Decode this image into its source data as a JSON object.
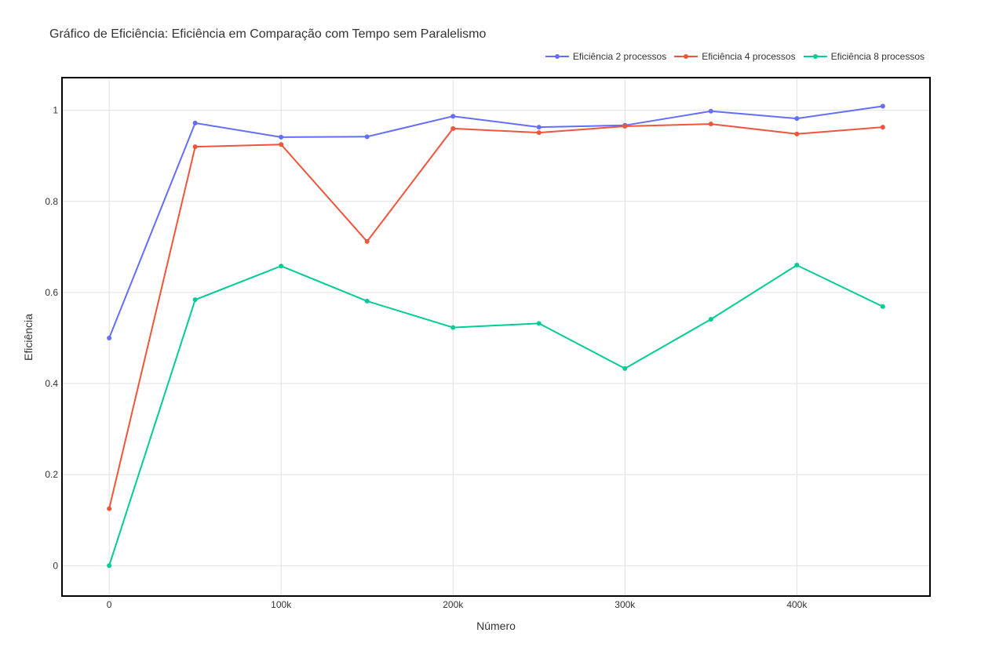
{
  "chart_data": {
    "type": "line",
    "title": "Gráfico de Eficiência: Eficiência em Comparação com Tempo sem Paralelismo",
    "xlabel": "Número",
    "ylabel": "Eficiência",
    "xlim": [
      -27000,
      477000
    ],
    "ylim": [
      -0.065,
      1.07
    ],
    "x_ticks": [
      0,
      100000,
      200000,
      300000,
      400000
    ],
    "x_tick_labels": [
      "0",
      "100k",
      "200k",
      "300k",
      "400k"
    ],
    "y_ticks": [
      0,
      0.2,
      0.4,
      0.6,
      0.8,
      1
    ],
    "y_tick_labels": [
      "0",
      "0.2",
      "0.4",
      "0.6",
      "0.8",
      "1"
    ],
    "grid": true,
    "legend_position": "top-right",
    "x": [
      0,
      50000,
      100000,
      150000,
      200000,
      250000,
      300000,
      350000,
      400000,
      450000
    ],
    "series": [
      {
        "name": "Eficiência 2 processos",
        "color": "#636efa",
        "values": [
          0.5,
          0.972,
          0.941,
          0.942,
          0.987,
          0.963,
          0.967,
          0.998,
          0.982,
          1.009
        ]
      },
      {
        "name": "Eficiência 4 processos",
        "color": "#ef553b",
        "values": [
          0.125,
          0.92,
          0.925,
          0.712,
          0.96,
          0.951,
          0.965,
          0.97,
          0.948,
          0.963
        ]
      },
      {
        "name": "Eficiência 8 processos",
        "color": "#00cc96",
        "values": [
          0.0,
          0.584,
          0.658,
          0.581,
          0.523,
          0.532,
          0.433,
          0.541,
          0.66,
          0.569
        ]
      }
    ]
  }
}
